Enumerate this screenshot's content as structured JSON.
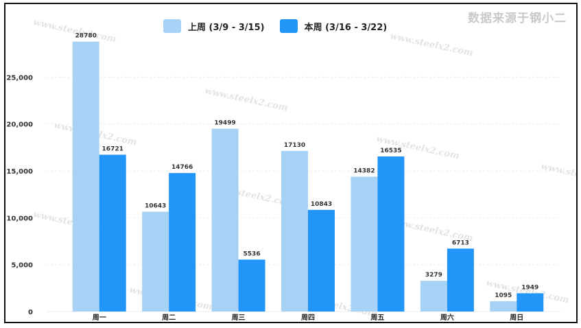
{
  "watermark": {
    "brand": "数据来源于钢小二",
    "site": "www.steelx2.com"
  },
  "colors": {
    "last_week": "#a7d2f6",
    "this_week": "#2196f8",
    "grid": "#ececec",
    "axis_text": "#333333"
  },
  "chart_data": {
    "type": "bar",
    "categories": [
      "周一",
      "周二",
      "周三",
      "周四",
      "周五",
      "周六",
      "周日"
    ],
    "series": [
      {
        "name": "上周 (3/9 - 3/15)",
        "values": [
          28780,
          10643,
          19499,
          17130,
          14382,
          3279,
          1095
        ]
      },
      {
        "name": "本周 (3/16 - 3/22)",
        "values": [
          16721,
          14766,
          5536,
          10843,
          16535,
          6713,
          1949
        ]
      }
    ],
    "yticks": [
      "0",
      "5,000",
      "10,000",
      "15,000",
      "20,000",
      "25,000"
    ],
    "ylim": [
      0,
      30000
    ],
    "legend_position": "top",
    "grid": true
  }
}
